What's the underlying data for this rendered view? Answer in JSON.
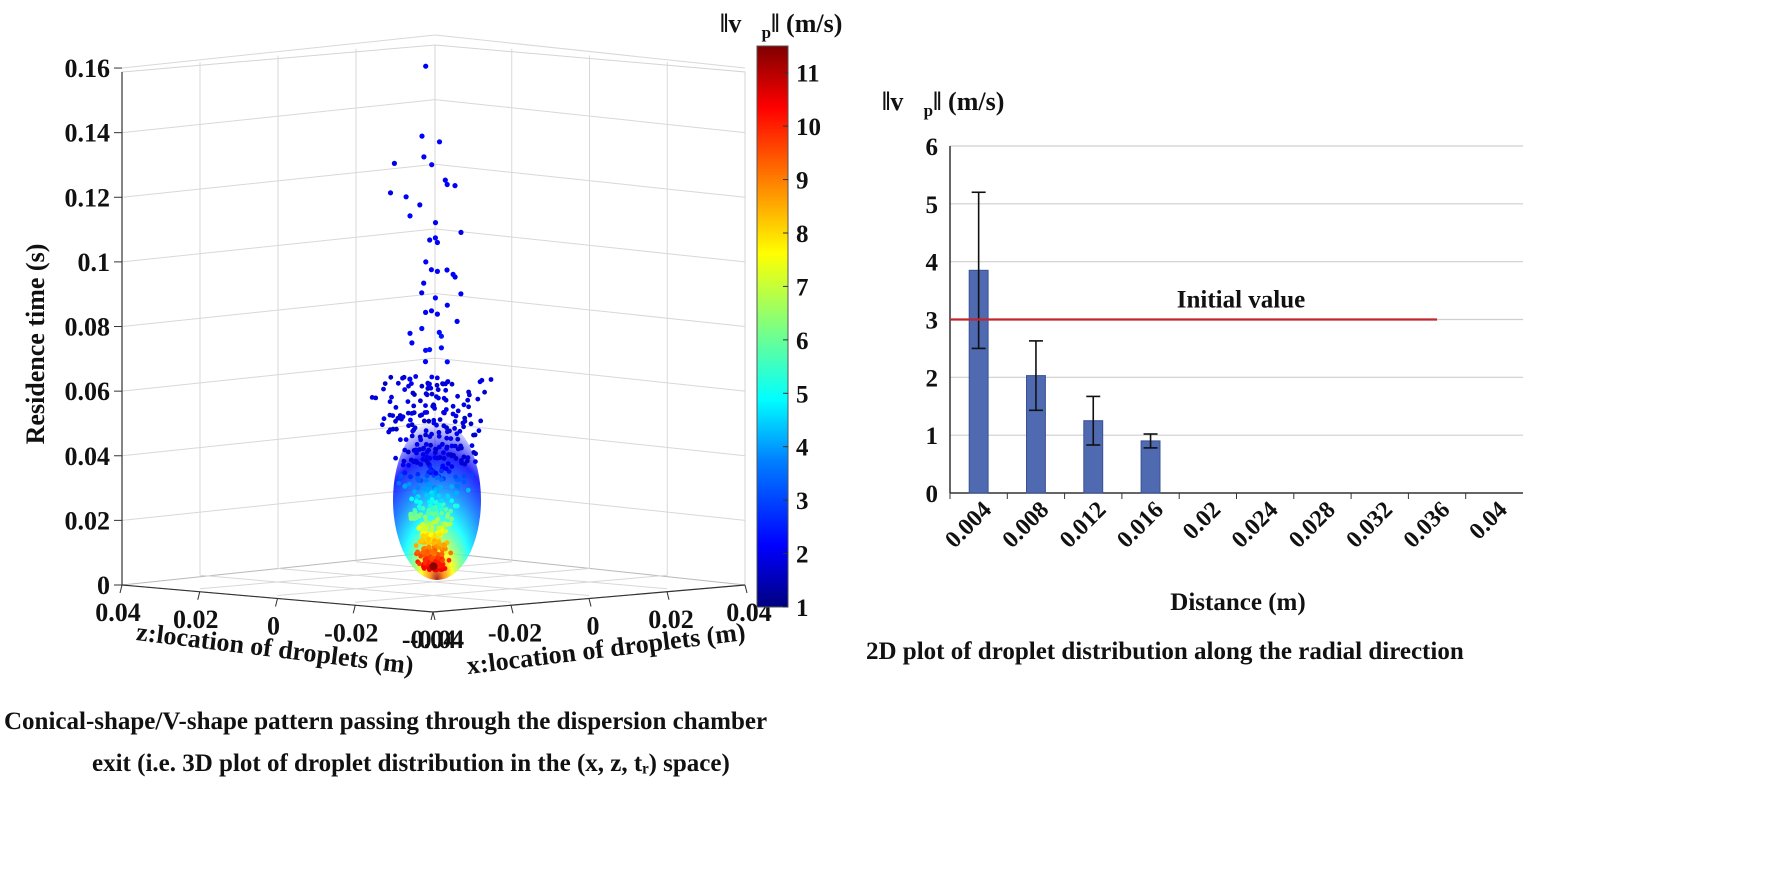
{
  "chart_data": [
    {
      "type": "scatter",
      "projection": "3d",
      "xlabel": "x:location of droplets (m)",
      "zlabel": "z:location of droplets (m)",
      "ylabel": "Residence time (s)",
      "x_ticks": [
        "-0.04",
        "-0.02",
        "0",
        "0.02",
        "0.04"
      ],
      "z_ticks": [
        "0.04",
        "0.02",
        "0",
        "-0.02",
        "-0.04"
      ],
      "y_ticks": [
        "0",
        "0.02",
        "0.04",
        "0.06",
        "0.08",
        "0.1",
        "0.12",
        "0.14",
        "0.16"
      ],
      "x_range": [
        -0.04,
        0.04
      ],
      "z_range": [
        -0.04,
        0.04
      ],
      "y_range": [
        0,
        0.16
      ],
      "grid": true,
      "colorbar": {
        "label_symbol": "‖v⃗",
        "label_sub": "p",
        "label_tail": "‖ (m/s)",
        "range": [
          1,
          11.5
        ],
        "ticks": [
          "1",
          "2",
          "3",
          "4",
          "5",
          "6",
          "7",
          "8",
          "9",
          "10",
          "11"
        ],
        "colormap": "jet",
        "colors": [
          "#00007f",
          "#0000ff",
          "#007fff",
          "#00ffff",
          "#7fff7f",
          "#ffff00",
          "#ff7f00",
          "#ff0000",
          "#7f0000"
        ]
      },
      "points": [
        {
          "x": 0.002,
          "z": 0.004,
          "t": 0.159,
          "v": 2.2
        },
        {
          "x": 0.01,
          "z": 0.013,
          "t": 0.1356,
          "v": 2.3
        },
        {
          "x": 0.0115,
          "z": 0.01,
          "t": 0.134,
          "v": 2.3
        },
        {
          "x": -0.0215,
          "z": -0.0115,
          "t": 0.133,
          "v": 2.1
        },
        {
          "x": 0.011,
          "z": 0.0135,
          "t": 0.129,
          "v": 2.2
        },
        {
          "x": 0.0125,
          "z": 0.013,
          "t": 0.1265,
          "v": 2.3
        },
        {
          "x": 0.0105,
          "z": 0.0075,
          "t": 0.1225,
          "v": 2.2
        },
        {
          "x": 0.009,
          "z": 0.0055,
          "t": 0.1215,
          "v": 2.3
        },
        {
          "x": 0.0085,
          "z": 0.003,
          "t": 0.1215,
          "v": 2.2
        },
        {
          "x": -0.0145,
          "z": -0.0075,
          "t": 0.1215,
          "v": 2.3
        },
        {
          "x": -0.0225,
          "z": -0.0115,
          "t": 0.124,
          "v": 2.1
        },
        {
          "x": -0.0055,
          "z": -0.002,
          "t": 0.1175,
          "v": 2.2
        },
        {
          "x": -0.0135,
          "z": -0.0075,
          "t": 0.1155,
          "v": 2.3
        },
        {
          "x": 0.0085,
          "z": 0.008,
          "t": 0.1095,
          "v": 2.2
        },
        {
          "x": -0.0045,
          "z": -0.005,
          "t": 0.1075,
          "v": 2.3
        },
        {
          "x": -0.0015,
          "z": -0.0025,
          "t": 0.1055,
          "v": 2.2
        },
        {
          "x": 0.006,
          "z": 0.007,
          "t": 0.1045,
          "v": 2.2
        },
        {
          "x": 0.026,
          "z": 0.019,
          "t": 0.1035,
          "v": 2.1
        },
        {
          "x": -0.0115,
          "z": -0.011,
          "t": 0.099,
          "v": 2.3
        },
        {
          "x": 0.0065,
          "z": 0.0085,
          "t": 0.0975,
          "v": 2.2
        },
        {
          "x": -0.0075,
          "z": -0.011,
          "t": 0.0985,
          "v": 2.2
        },
        {
          "x": 0.0035,
          "z": 0.0025,
          "t": 0.0955,
          "v": 2.3
        },
        {
          "x": -0.006,
          "z": -0.0035,
          "t": 0.0935,
          "v": 2.2
        },
        {
          "x": 0.013,
          "z": 0.008,
          "t": 0.093,
          "v": 2.3
        },
        {
          "x": -0.0135,
          "z": -0.0105,
          "t": 0.092,
          "v": 2.2
        },
        {
          "x": 0.0215,
          "z": 0.016,
          "t": 0.0905,
          "v": 2.2
        },
        {
          "x": -0.0025,
          "z": -0.003,
          "t": 0.0885,
          "v": 2.3
        },
        {
          "x": 0.0165,
          "z": 0.0095,
          "t": 0.0865,
          "v": 2.2
        },
        {
          "x": -0.0085,
          "z": -0.0065,
          "t": 0.085,
          "v": 2.2
        },
        {
          "x": -0.003,
          "z": -0.0025,
          "t": 0.0845,
          "v": 2.3
        },
        {
          "x": -0.0175,
          "z": -0.0115,
          "t": 0.08,
          "v": 2.3
        },
        {
          "x": 0.0025,
          "z": 0.0015,
          "t": 0.0825,
          "v": 2.2
        },
        {
          "x": 0.0145,
          "z": 0.011,
          "t": 0.083,
          "v": 2.2
        },
        {
          "x": 0.0205,
          "z": 0.0145,
          "t": 0.077,
          "v": 2.3
        },
        {
          "x": -0.0065,
          "z": -0.0035,
          "t": 0.0795,
          "v": 2.4
        },
        {
          "x": -0.0195,
          "z": -0.014,
          "t": 0.0775,
          "v": 2.3
        },
        {
          "x": -0.0005,
          "z": -0.002,
          "t": 0.0775,
          "v": 2.4
        },
        {
          "x": 0.0085,
          "z": 0.0065,
          "t": 0.0745,
          "v": 2.5
        },
        {
          "x": -0.0095,
          "z": -0.0075,
          "t": 0.0735,
          "v": 2.4
        },
        {
          "x": -0.0215,
          "z": -0.0195,
          "t": 0.0725,
          "v": 2.3
        },
        {
          "x": -0.0255,
          "z": -0.0195,
          "t": 0.0675,
          "v": 2.3
        },
        {
          "x": 0.0015,
          "z": 0.0025,
          "t": 0.0715,
          "v": 2.5
        },
        {
          "x": 0.0105,
          "z": 0.0085,
          "t": 0.0705,
          "v": 2.4
        },
        {
          "x": 0.0145,
          "z": 0.011,
          "t": 0.0655,
          "v": 2.4
        }
      ]
    },
    {
      "type": "bar",
      "ylabel_symbol": "‖v⃗",
      "ylabel_sub": "p",
      "ylabel_tail": "‖ (m/s)",
      "xlabel": "Distance (m)",
      "categories": [
        "0.004",
        "0.008",
        "0.012",
        "0.016",
        "0.02",
        "0.024",
        "0.028",
        "0.032",
        "0.036",
        "0.04"
      ],
      "values": [
        3.85,
        2.03,
        1.25,
        0.9,
        null,
        null,
        null,
        null,
        null,
        null
      ],
      "errors": [
        1.35,
        0.6,
        0.42,
        0.12,
        null,
        null,
        null,
        null,
        null,
        null
      ],
      "y_ticks": [
        "0",
        "1",
        "2",
        "3",
        "4",
        "5",
        "6"
      ],
      "ylim": [
        0,
        6
      ],
      "bar_color": "#4f6ab0",
      "grid": true,
      "reference_line": {
        "label": "Initial value",
        "value": 3.0,
        "color": "#c0282d",
        "x_start": 0.002,
        "x_end": 0.036
      }
    }
  ],
  "captions": {
    "left_line1": "Conical-shape/V-shape pattern passing through the dispersion chamber",
    "left_line2": "exit  (i.e. 3D plot of droplet distribution in  the (x, z, tᵣ) space)",
    "right": "2D plot of droplet distribution along the radial direction"
  }
}
